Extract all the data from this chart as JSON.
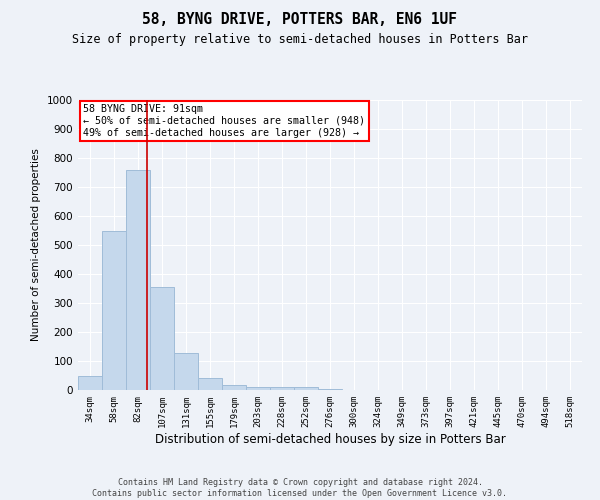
{
  "title": "58, BYNG DRIVE, POTTERS BAR, EN6 1UF",
  "subtitle": "Size of property relative to semi-detached houses in Potters Bar",
  "xlabel": "Distribution of semi-detached houses by size in Potters Bar",
  "ylabel": "Number of semi-detached properties",
  "categories": [
    "34sqm",
    "58sqm",
    "82sqm",
    "107sqm",
    "131sqm",
    "155sqm",
    "179sqm",
    "203sqm",
    "228sqm",
    "252sqm",
    "276sqm",
    "300sqm",
    "324sqm",
    "349sqm",
    "373sqm",
    "397sqm",
    "421sqm",
    "445sqm",
    "470sqm",
    "494sqm",
    "518sqm"
  ],
  "values": [
    50,
    550,
    760,
    355,
    128,
    40,
    18,
    10,
    10,
    10,
    5,
    0,
    0,
    0,
    0,
    0,
    0,
    0,
    0,
    0,
    0
  ],
  "bar_color": "#c5d8ec",
  "bar_edgecolor": "#a0bcd8",
  "bar_linewidth": 0.7,
  "property_label": "58 BYNG DRIVE: 91sqm",
  "annotation_line1": "← 50% of semi-detached houses are smaller (948)",
  "annotation_line2": "49% of semi-detached houses are larger (928) →",
  "vline_color": "#cc0000",
  "vline_x": 2.375,
  "ylim": [
    0,
    1000
  ],
  "yticks": [
    0,
    100,
    200,
    300,
    400,
    500,
    600,
    700,
    800,
    900,
    1000
  ],
  "background_color": "#eef2f8",
  "grid_color": "#ffffff",
  "footer_line1": "Contains HM Land Registry data © Crown copyright and database right 2024.",
  "footer_line2": "Contains public sector information licensed under the Open Government Licence v3.0."
}
